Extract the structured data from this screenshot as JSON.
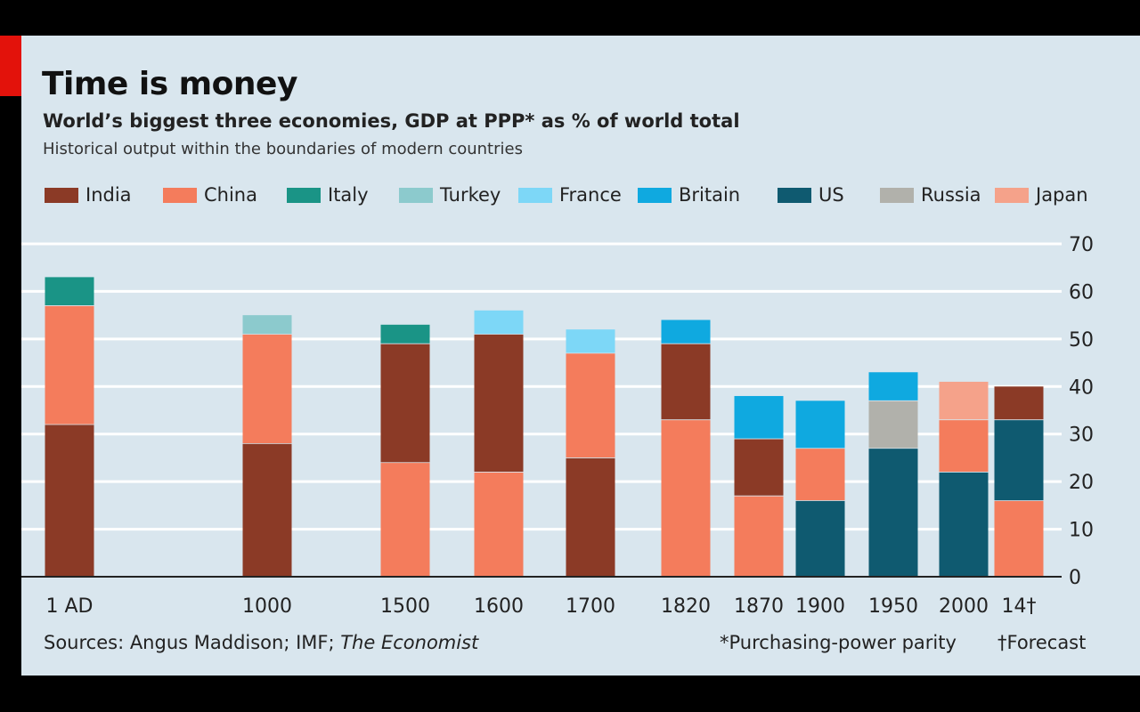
{
  "header": {
    "title": "Time is money",
    "subtitle": "World’s biggest three economies, GDP at PPP* as % of world total",
    "subsubtitle": "Historical output within the boundaries of modern countries"
  },
  "footer": {
    "sources_prefix": "Sources: Angus Maddison; IMF; ",
    "sources_italic": "The Economist",
    "note_ppp": "*Purchasing-power parity",
    "note_forecast": "†Forecast"
  },
  "colors": {
    "India": "#8b3a26",
    "China": "#f47c5c",
    "Italy": "#1a9486",
    "Turkey": "#8ccacd",
    "France": "#7dd7f7",
    "Britain": "#0fa9e0",
    "US": "#0f5a70",
    "Russia": "#b1b1ab",
    "Japan": "#f5a28a"
  },
  "chart_data": {
    "type": "bar",
    "stacked": true,
    "categories": [
      "1 AD",
      "1000",
      "1500",
      "1600",
      "1700",
      "1820",
      "1870",
      "1900",
      "1950",
      "2000",
      "14†"
    ],
    "legend": [
      "India",
      "China",
      "Italy",
      "Turkey",
      "France",
      "Britain",
      "US",
      "Russia",
      "Japan"
    ],
    "series": [
      {
        "name": "India",
        "values": [
          32,
          28,
          25,
          29,
          25,
          16,
          12,
          0,
          0,
          0,
          7
        ]
      },
      {
        "name": "China",
        "values": [
          25,
          23,
          24,
          22,
          22,
          33,
          17,
          11,
          0,
          11,
          16
        ]
      },
      {
        "name": "Italy",
        "values": [
          6,
          0,
          4,
          0,
          0,
          0,
          0,
          0,
          0,
          0,
          0
        ]
      },
      {
        "name": "Turkey",
        "values": [
          0,
          4,
          0,
          0,
          0,
          0,
          0,
          0,
          0,
          0,
          0
        ]
      },
      {
        "name": "France",
        "values": [
          0,
          0,
          0,
          5,
          5,
          0,
          0,
          0,
          0,
          0,
          0
        ]
      },
      {
        "name": "Britain",
        "values": [
          0,
          0,
          0,
          0,
          0,
          5,
          9,
          10,
          6,
          0,
          0
        ]
      },
      {
        "name": "US",
        "values": [
          0,
          0,
          0,
          0,
          0,
          0,
          0,
          16,
          27,
          22,
          17
        ]
      },
      {
        "name": "Russia",
        "values": [
          0,
          0,
          0,
          0,
          0,
          0,
          0,
          0,
          10,
          0,
          0
        ]
      },
      {
        "name": "Japan",
        "values": [
          0,
          0,
          0,
          0,
          0,
          0,
          0,
          0,
          0,
          8,
          0
        ]
      }
    ],
    "stack_order": [
      [
        "India",
        "China",
        "Italy"
      ],
      [
        "India",
        "China",
        "Turkey"
      ],
      [
        "China",
        "India",
        "Italy"
      ],
      [
        "China",
        "India",
        "France"
      ],
      [
        "India",
        "China",
        "France"
      ],
      [
        "China",
        "India",
        "Britain"
      ],
      [
        "China",
        "India",
        "Britain"
      ],
      [
        "US",
        "China",
        "Britain"
      ],
      [
        "US",
        "Russia",
        "Britain"
      ],
      [
        "US",
        "China",
        "Japan"
      ],
      [
        "China",
        "US",
        "India"
      ]
    ],
    "ylim": [
      0,
      70
    ],
    "yticks": [
      0,
      10,
      20,
      30,
      40,
      50,
      60,
      70
    ],
    "y_axis_side": "right",
    "grid": true
  }
}
